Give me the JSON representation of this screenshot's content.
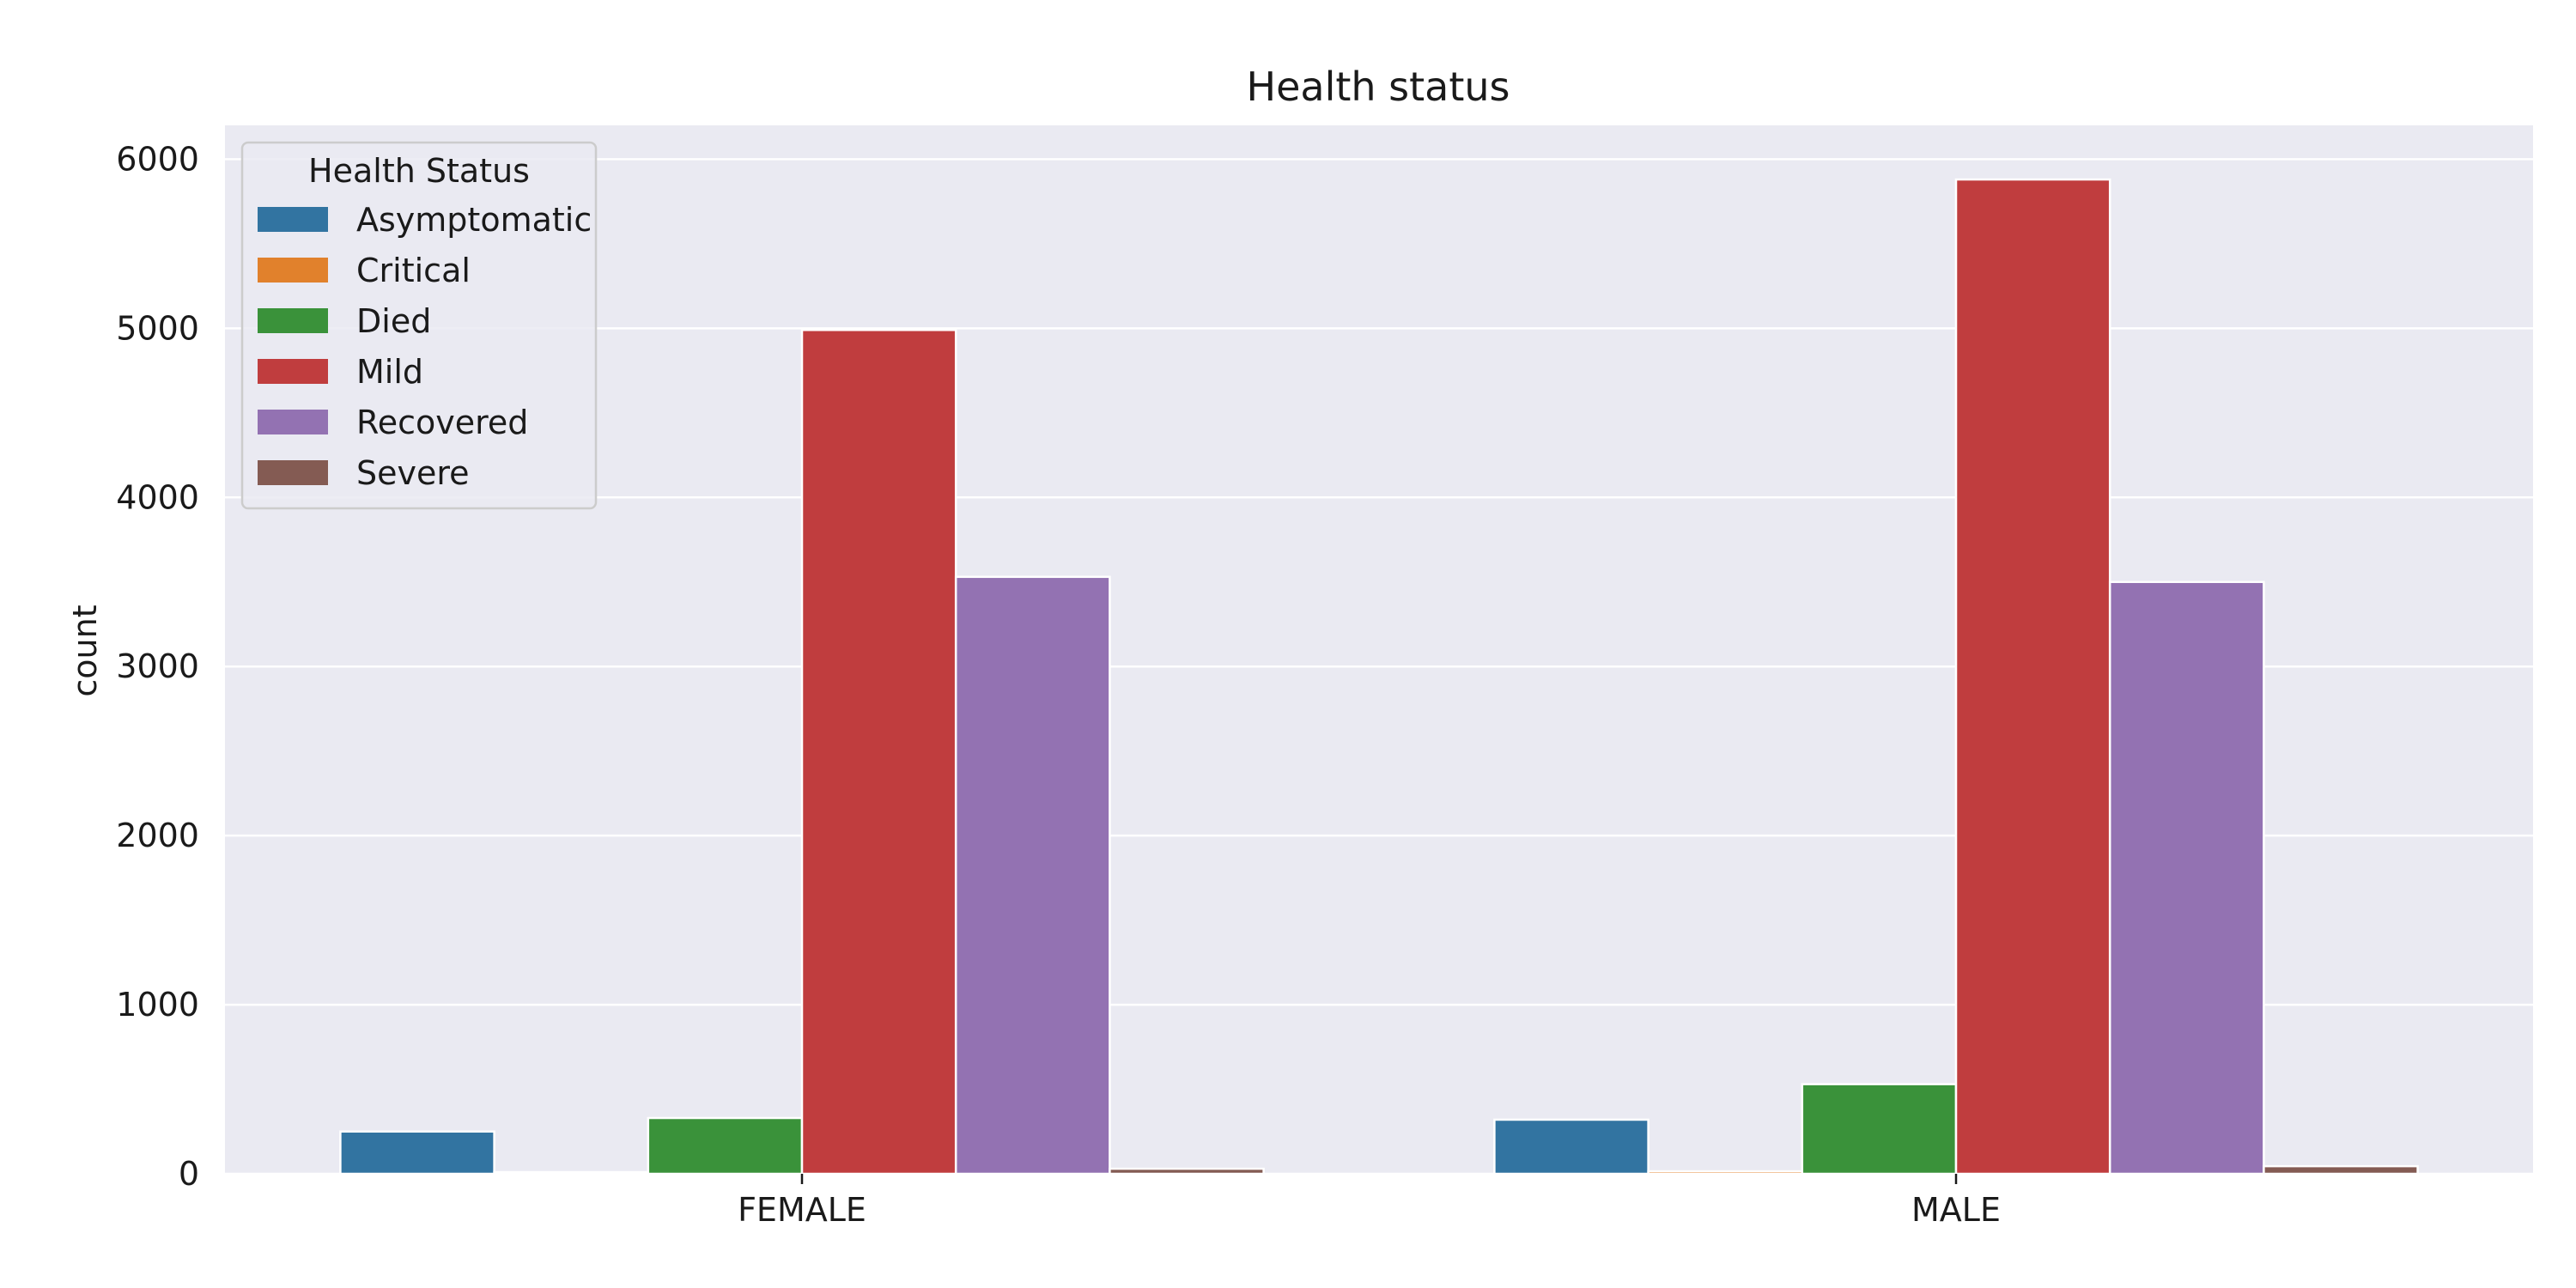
{
  "chart_data": {
    "type": "bar",
    "title": "Health status",
    "xlabel": "",
    "ylabel": "count",
    "categories": [
      "FEMALE",
      "MALE"
    ],
    "ylim": [
      0,
      6200
    ],
    "yticks": [
      0,
      1000,
      2000,
      3000,
      4000,
      5000,
      6000
    ],
    "grid": true,
    "legend": {
      "title": "Health Status",
      "placement": "top-left"
    },
    "series": [
      {
        "name": "Asymptomatic",
        "color": "#3274a1",
        "values": [
          250,
          320
        ]
      },
      {
        "name": "Critical",
        "color": "#e1812c",
        "values": [
          10,
          15
        ]
      },
      {
        "name": "Died",
        "color": "#3a923a",
        "values": [
          330,
          530
        ]
      },
      {
        "name": "Mild",
        "color": "#c03d3e",
        "values": [
          4990,
          5880
        ]
      },
      {
        "name": "Recovered",
        "color": "#9372b2",
        "values": [
          3530,
          3500
        ]
      },
      {
        "name": "Severe",
        "color": "#845b53",
        "values": [
          30,
          45
        ]
      }
    ],
    "background_color": "#eaeaf2",
    "grid_color": "#ffffff"
  }
}
